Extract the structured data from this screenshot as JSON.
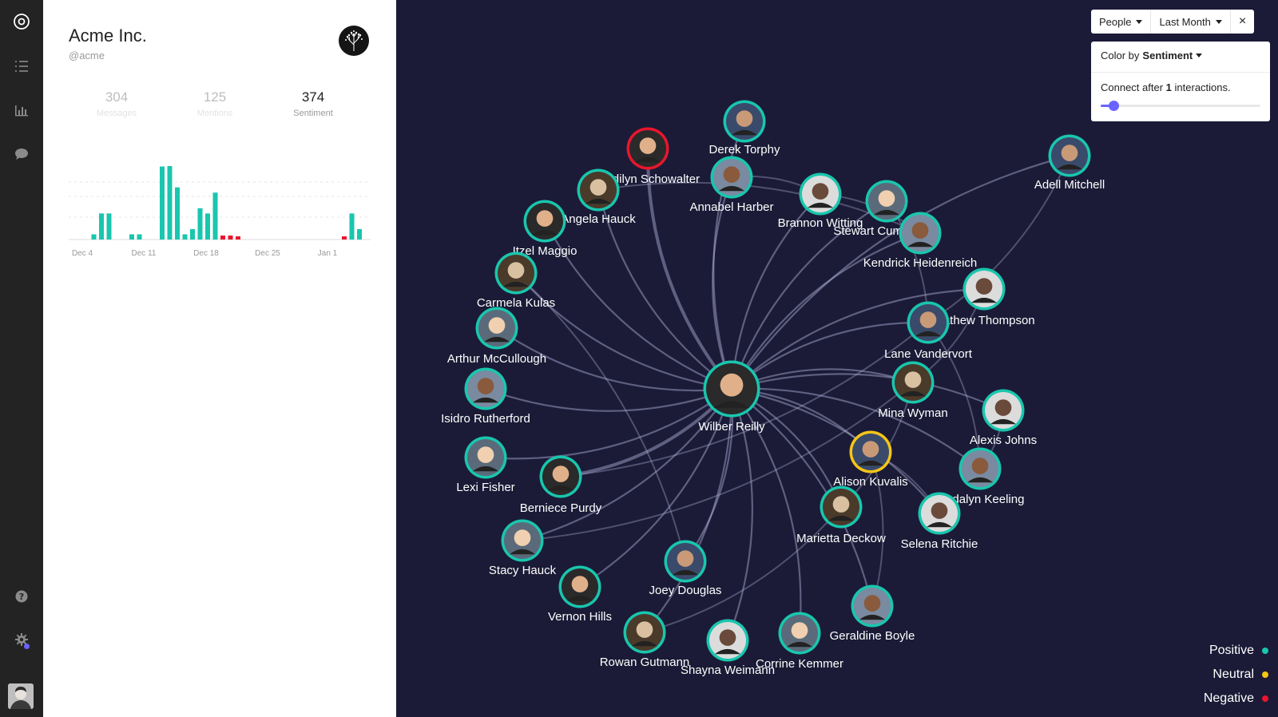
{
  "org": {
    "name": "Acme Inc.",
    "handle": "@acme"
  },
  "stats": [
    {
      "value": "304",
      "label": "Messages"
    },
    {
      "value": "125",
      "label": "Mentions"
    },
    {
      "value": "374",
      "label": "Sentiment"
    }
  ],
  "chart_data": {
    "type": "bar",
    "x_tick_labels": [
      "Dec 4",
      "Dec 11",
      "Dec 18",
      "Dec 25",
      "Jan 1"
    ],
    "series": [
      {
        "values": [
          0,
          0,
          0,
          1,
          5,
          5,
          0,
          0,
          1,
          1,
          0,
          0,
          14,
          15,
          10,
          1,
          2,
          6,
          5,
          9,
          0,
          0,
          0,
          0,
          0,
          0,
          0,
          0,
          0,
          0,
          0,
          0,
          0,
          0,
          0,
          0,
          0,
          5,
          2
        ]
      },
      {
        "values": [
          0,
          0,
          0,
          0,
          0,
          0,
          0,
          0,
          0,
          0,
          0,
          0,
          0,
          0,
          0,
          0,
          0,
          0,
          0,
          0,
          1,
          1,
          0.3,
          0,
          0,
          0,
          0,
          0,
          0,
          0,
          0,
          0,
          0,
          0,
          0,
          0,
          0.5,
          0,
          0
        ]
      }
    ],
    "colors": {
      "positive": "#19c6ae",
      "negative": "#e8162d"
    },
    "grid": true
  },
  "toolbar": {
    "people": "People",
    "period": "Last Month",
    "close": "×"
  },
  "options": {
    "color_prefix": "Color by",
    "color_value": "Sentiment",
    "connect_prefix": "Connect after",
    "connect_value": "1",
    "connect_suffix": "interactions.",
    "slider_fraction": 0.05
  },
  "legend": [
    {
      "label": "Positive",
      "color": "#19c6ae"
    },
    {
      "label": "Neutral",
      "color": "#f5c518"
    },
    {
      "label": "Negative",
      "color": "#e8162d"
    }
  ],
  "sentiment_colors": {
    "positive": "#19c6ae",
    "neutral": "#f5c518",
    "negative": "#e8162d"
  },
  "center_node": "Wilber Reilly",
  "nodes": [
    {
      "name": "Derek Torphy",
      "sentiment": "positive"
    },
    {
      "name": "Madilyn Schowalter",
      "sentiment": "negative"
    },
    {
      "name": "Annabel Harber",
      "sentiment": "positive"
    },
    {
      "name": "Angela Hauck",
      "sentiment": "positive"
    },
    {
      "name": "Brannon Witting",
      "sentiment": "positive"
    },
    {
      "name": "Stewart Cummerata",
      "sentiment": "positive"
    },
    {
      "name": "Adell Mitchell",
      "sentiment": "positive"
    },
    {
      "name": "Itzel Maggio",
      "sentiment": "positive"
    },
    {
      "name": "Kendrick Heidenreich",
      "sentiment": "positive"
    },
    {
      "name": "Carmela Kulas",
      "sentiment": "positive"
    },
    {
      "name": "Mathew Thompson",
      "sentiment": "positive"
    },
    {
      "name": "Arthur McCullough",
      "sentiment": "positive"
    },
    {
      "name": "Lane Vandervort",
      "sentiment": "positive"
    },
    {
      "name": "Wilber Reilly",
      "sentiment": "positive"
    },
    {
      "name": "Isidro Rutherford",
      "sentiment": "positive"
    },
    {
      "name": "Mina Wyman",
      "sentiment": "positive"
    },
    {
      "name": "Alexis Johns",
      "sentiment": "positive"
    },
    {
      "name": "Lexi Fisher",
      "sentiment": "positive"
    },
    {
      "name": "Alison Kuvalis",
      "sentiment": "neutral"
    },
    {
      "name": "Berniece Purdy",
      "sentiment": "positive"
    },
    {
      "name": "Madalyn Keeling",
      "sentiment": "positive"
    },
    {
      "name": "Marietta Deckow",
      "sentiment": "positive"
    },
    {
      "name": "Selena Ritchie",
      "sentiment": "positive"
    },
    {
      "name": "Stacy Hauck",
      "sentiment": "positive"
    },
    {
      "name": "Joey Douglas",
      "sentiment": "positive"
    },
    {
      "name": "Vernon Hills",
      "sentiment": "positive"
    },
    {
      "name": "Geraldine Boyle",
      "sentiment": "positive"
    },
    {
      "name": "Rowan Gutmann",
      "sentiment": "positive"
    },
    {
      "name": "Shayna Weimann",
      "sentiment": "positive"
    },
    {
      "name": "Corrine Kemmer",
      "sentiment": "positive"
    }
  ],
  "nav_icons": [
    "target-icon",
    "list-icon",
    "bar-chart-icon",
    "chat-icon",
    "help-icon",
    "settings-icon"
  ]
}
